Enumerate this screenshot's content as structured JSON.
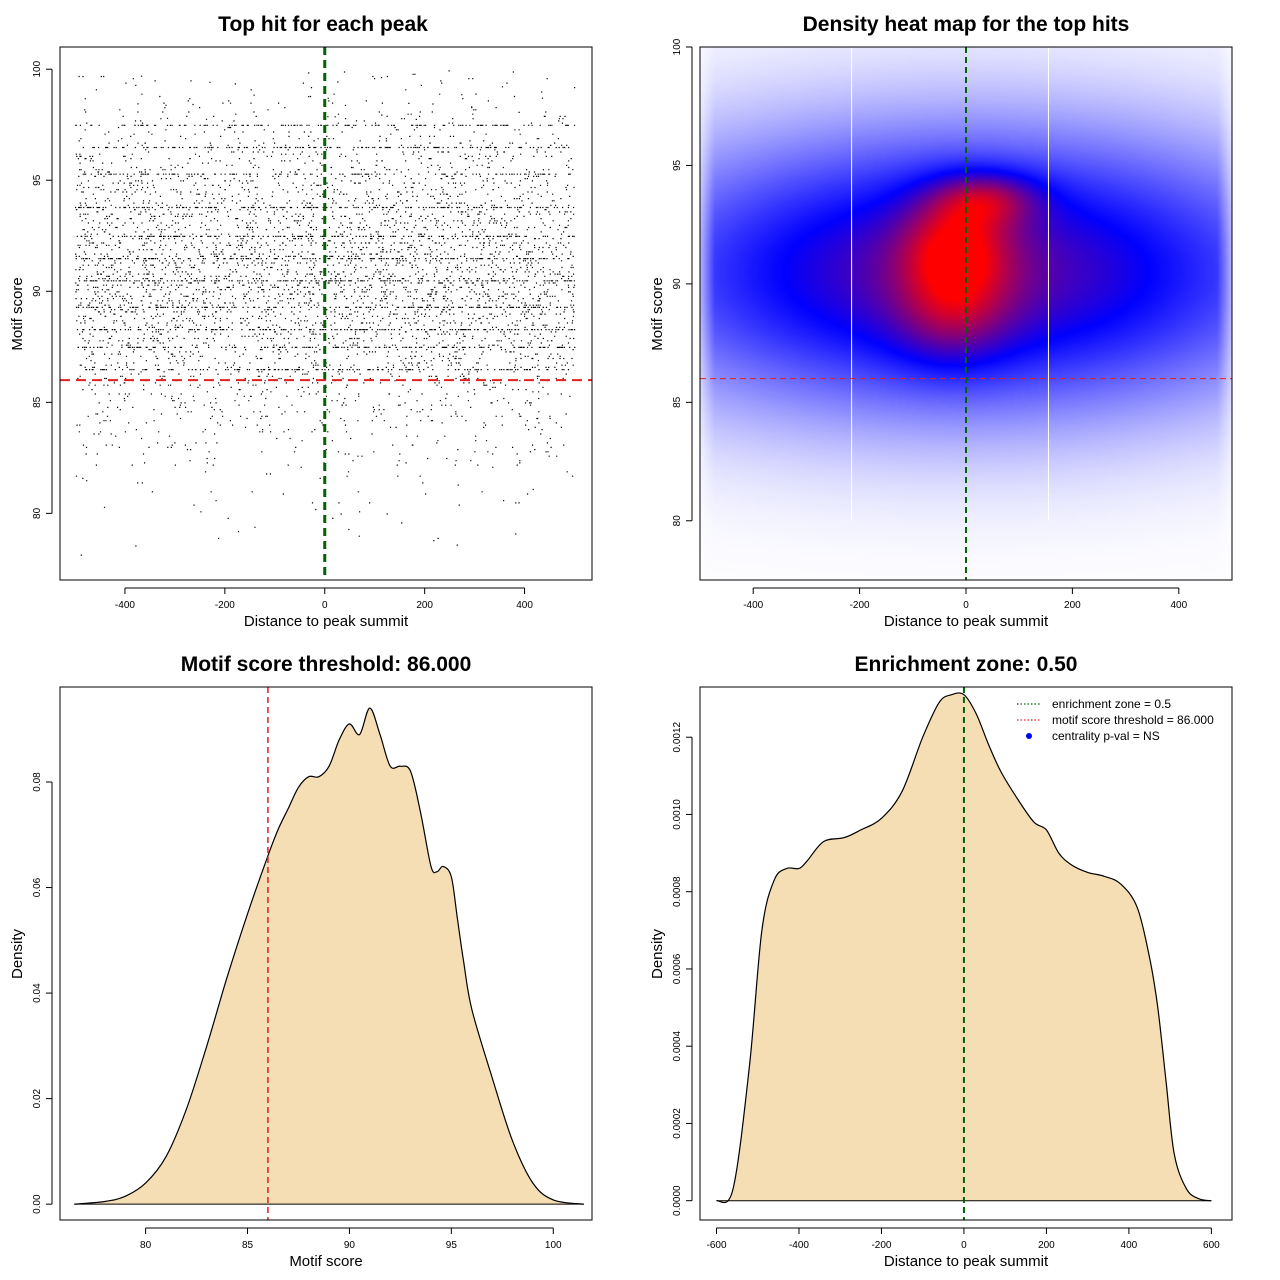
{
  "chart_data": [
    {
      "type": "scatter",
      "title": "Top hit for each peak",
      "xlabel": "Distance to peak summit",
      "ylabel": "Motif score",
      "xlim": [
        -530,
        535
      ],
      "ylim": [
        77,
        101
      ],
      "xticks": [
        -400,
        -200,
        0,
        200,
        400
      ],
      "yticks": [
        80,
        85,
        90,
        95,
        100
      ],
      "n_points_approx": 6000,
      "point_x_range": [
        -500,
        500
      ],
      "point_y_distribution": {
        "center": 90.8,
        "sd": 3.7,
        "min": 77.6,
        "max": 100
      },
      "score_levels_prominent": [
        97.5,
        96.5,
        95.3,
        93.8,
        92.5,
        91.5,
        90.5,
        89.3,
        88.3,
        87.5,
        86.5
      ],
      "vline_x": 0,
      "hline_y": 86,
      "vline_color": "#006400",
      "hline_color": "#e02020"
    },
    {
      "type": "heatmap",
      "title": "Density heat map for the top hits",
      "xlabel": "Distance to peak summit",
      "ylabel": "Motif score",
      "xlim": [
        -500,
        500
      ],
      "ylim": [
        77.5,
        100
      ],
      "xticks": [
        -400,
        -200,
        0,
        200,
        400
      ],
      "yticks": [
        80,
        85,
        90,
        95,
        100
      ],
      "colorscale": [
        "#ffffff",
        "#0000ff",
        "#ff0000"
      ],
      "density_blobs": [
        {
          "x": 0,
          "y": 90.5,
          "sx": 420,
          "sy": 3.8,
          "w": 1.0
        },
        {
          "x": -20,
          "y": 91.5,
          "sx": 70,
          "sy": 1.6,
          "w": 0.55
        },
        {
          "x": 40,
          "y": 93.6,
          "sx": 70,
          "sy": 0.8,
          "w": 0.45
        },
        {
          "x": -25,
          "y": 88.5,
          "sx": 75,
          "sy": 1.5,
          "w": 0.3
        }
      ],
      "white_vlines_x": [
        -215,
        155
      ],
      "vline_x": 0,
      "hline_y": 86,
      "vline_color": "#006400",
      "hline_color": "#e02020"
    },
    {
      "type": "area",
      "title": "Motif score threshold: 86.000",
      "xlabel": "Motif score",
      "ylabel": "Density",
      "xlim": [
        75.8,
        101.9
      ],
      "ylim": [
        -0.003,
        0.098
      ],
      "xticks": [
        80,
        85,
        90,
        95,
        100
      ],
      "yticks": [
        0.0,
        0.02,
        0.04,
        0.06,
        0.08
      ],
      "ytick_labels": [
        "0.00",
        "0.02",
        "0.04",
        "0.06",
        "0.08"
      ],
      "x": [
        76.5,
        78,
        79,
        80,
        81,
        82,
        83,
        84,
        85,
        86,
        86.5,
        87,
        87.5,
        88,
        88.5,
        89,
        89.5,
        90,
        90.5,
        91,
        91.5,
        92,
        92.5,
        93,
        93.5,
        94,
        94.3,
        94.6,
        95,
        95.3,
        95.6,
        96,
        97,
        98,
        99,
        100,
        101.5
      ],
      "y": [
        0.0,
        0.0005,
        0.0015,
        0.004,
        0.009,
        0.018,
        0.03,
        0.043,
        0.055,
        0.066,
        0.071,
        0.075,
        0.079,
        0.081,
        0.081,
        0.083,
        0.088,
        0.091,
        0.089,
        0.094,
        0.089,
        0.083,
        0.083,
        0.082,
        0.074,
        0.064,
        0.063,
        0.064,
        0.062,
        0.054,
        0.046,
        0.037,
        0.024,
        0.012,
        0.004,
        0.0008,
        0.0
      ],
      "fill_color": "#f5deb3",
      "vline_x": 86,
      "vline_color": "#e02020"
    },
    {
      "type": "area",
      "title": "Enrichment zone: 0.50",
      "xlabel": "Distance to peak summit",
      "ylabel": "Density",
      "xlim": [
        -640,
        650
      ],
      "ylim": [
        -5e-05,
        0.00133
      ],
      "xticks": [
        -600,
        -400,
        -200,
        0,
        200,
        400,
        600
      ],
      "yticks": [
        0.0,
        0.0002,
        0.0004,
        0.0006,
        0.0008,
        0.001,
        0.0012
      ],
      "ytick_labels": [
        "0.0000",
        "0.0002",
        "0.0004",
        "0.0006",
        "0.0008",
        "0.0010",
        "0.0012"
      ],
      "x": [
        -600,
        -560,
        -520,
        -490,
        -460,
        -430,
        -400,
        -380,
        -340,
        -290,
        -250,
        -200,
        -150,
        -100,
        -60,
        -30,
        0,
        30,
        60,
        90,
        130,
        170,
        200,
        230,
        260,
        300,
        340,
        380,
        420,
        450,
        470,
        490,
        510,
        540,
        570,
        600
      ],
      "y": [
        0.0,
        3e-05,
        0.00035,
        0.0007,
        0.00083,
        0.00086,
        0.00086,
        0.00088,
        0.00093,
        0.00094,
        0.00096,
        0.00099,
        0.00106,
        0.0012,
        0.00129,
        0.00131,
        0.00131,
        0.00126,
        0.00118,
        0.00111,
        0.00104,
        0.00098,
        0.00096,
        0.0009,
        0.00087,
        0.00085,
        0.00084,
        0.00082,
        0.00076,
        0.00063,
        0.0005,
        0.00031,
        0.00012,
        3e-05,
        5e-06,
        0.0
      ],
      "fill_color": "#f5deb3",
      "vline_x": 0,
      "vline_color": "#006400",
      "legend": [
        {
          "label": "enrichment zone = 0.5",
          "style": "dotted-line",
          "color": "#006400"
        },
        {
          "label": "motif score threshold = 86.000",
          "style": "dotted-line",
          "color": "#e02020"
        },
        {
          "label": "centrality p-val = NS",
          "style": "dot",
          "color": "#0000ff"
        }
      ],
      "legend_position": "top-right"
    }
  ]
}
